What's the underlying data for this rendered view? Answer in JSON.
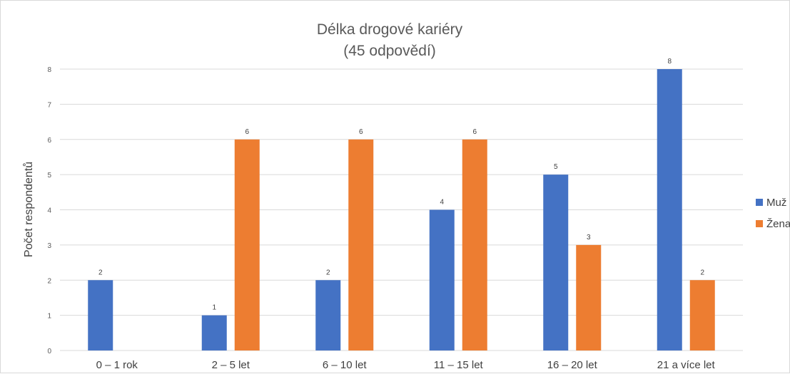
{
  "chart_data": {
    "type": "bar",
    "title": "Délka drogové kariéry",
    "subtitle": "(45 odpovědí)",
    "ylabel": "Počet respondentů",
    "xlabel": "",
    "categories": [
      "0 – 1 rok",
      "2 – 5 let",
      "6 – 10 let",
      "11 – 15 let",
      "16 – 20 let",
      "21 a více let"
    ],
    "series": [
      {
        "name": "Muž",
        "color": "#4472C4",
        "values": [
          2,
          1,
          2,
          4,
          5,
          8
        ]
      },
      {
        "name": "Žena",
        "color": "#ED7D31",
        "values": [
          null,
          6,
          6,
          6,
          3,
          2
        ]
      }
    ],
    "ylim": [
      0,
      8
    ],
    "yticks": [
      "0",
      "1",
      "2",
      "3",
      "4",
      "5",
      "6",
      "7",
      "8"
    ],
    "grid": true,
    "legend": "right"
  }
}
